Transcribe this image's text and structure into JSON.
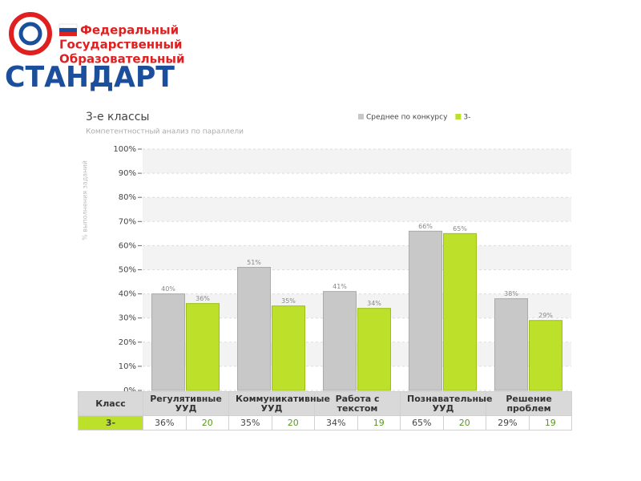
{
  "logo": {
    "lines": [
      "Федеральный",
      "Государственный",
      "Образовательный"
    ],
    "word": "СТАНДАРТ"
  },
  "chart_data": {
    "type": "bar",
    "title": "3-е классы",
    "subtitle": "Компетентностный анализ по параллели",
    "y_label": "% выполнения заданий",
    "categories": [
      "Регулятивные УУД",
      "Коммуникативные УУД",
      "Работа с текстом",
      "Познавательные УУД",
      "Решение проблем"
    ],
    "series": [
      {
        "name": "Среднее по конкурсу",
        "color": "#c8c8c8",
        "values": [
          40,
          51,
          41,
          66,
          38
        ],
        "value_labels": [
          "40%",
          "51%",
          "41%",
          "66%",
          "38%"
        ]
      },
      {
        "name": "3-",
        "color": "#bde02a",
        "values": [
          36,
          35,
          34,
          65,
          29
        ],
        "value_labels": [
          "36%",
          "35%",
          "34%",
          "65%",
          "29%"
        ]
      }
    ],
    "ylim": [
      0,
      100
    ],
    "yticks": [
      {
        "value": 0,
        "label": "0%"
      },
      {
        "value": 10,
        "label": "10%"
      },
      {
        "value": 20,
        "label": "20%"
      },
      {
        "value": 30,
        "label": "30%"
      },
      {
        "value": 40,
        "label": "40%"
      },
      {
        "value": 50,
        "label": "50%"
      },
      {
        "value": 60,
        "label": "60%"
      },
      {
        "value": 70,
        "label": "70%"
      },
      {
        "value": 80,
        "label": "80%"
      },
      {
        "value": 90,
        "label": "90%"
      },
      {
        "value": 100,
        "label": "100%"
      }
    ],
    "grid": true,
    "legend": "top-right"
  },
  "table": {
    "header": "Класс",
    "rows": [
      [
        "3-",
        "36%",
        "20",
        "35%",
        "20",
        "34%",
        "19",
        "65%",
        "20",
        "29%",
        "19"
      ]
    ]
  }
}
